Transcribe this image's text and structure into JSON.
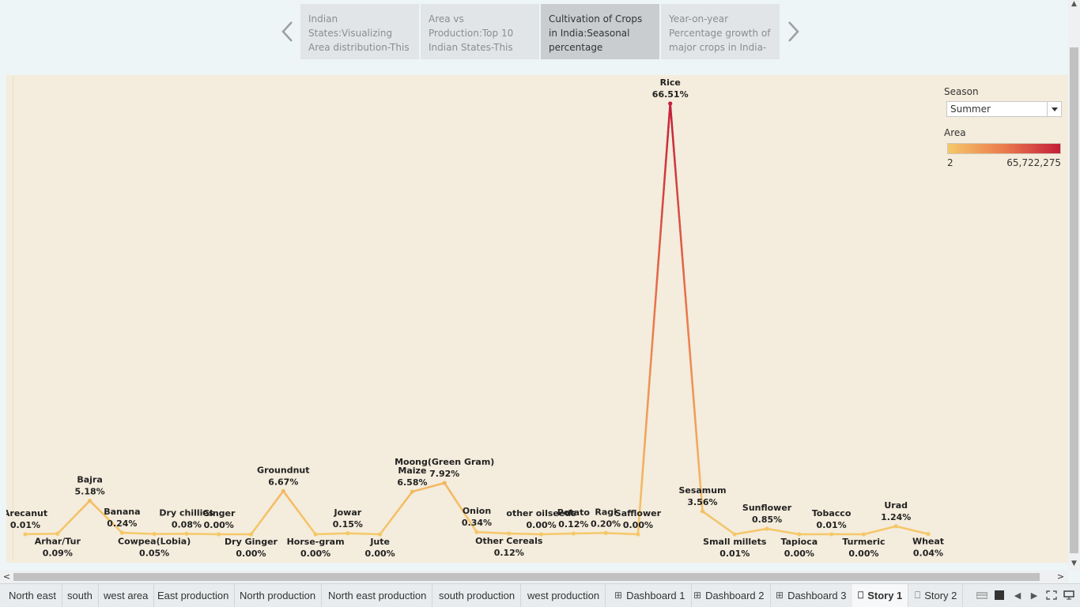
{
  "story": {
    "points": [
      "Indian States:Visualizing Area distribution-This",
      "Area vs Production:Top 10 Indian States-This",
      "Cultivation of Crops in India:Seasonal percentage",
      "Year-on-year Percentage growth of major crops in India-"
    ],
    "active_index": 2
  },
  "legend": {
    "season_title": "Season",
    "season_value": "Summer",
    "area_title": "Area",
    "area_min": "2",
    "area_max": "65,722,275",
    "colors": [
      "#f5c869",
      "#eb7a4d",
      "#c41e3a"
    ]
  },
  "chart_data": {
    "type": "line",
    "x": [
      "Arecanut",
      "Arhar/Tur",
      "Bajra",
      "Banana",
      "Cowpea(Lobia)",
      "Dry chillies",
      "Ginger",
      "Dry Ginger",
      "Groundnut",
      "Horse-gram",
      "Jowar",
      "Jute",
      "Maize",
      "Moong(Green Gram)",
      "Onion",
      "Other Cereals",
      "other oilseeds",
      "Potato",
      "Ragi",
      "Safflower",
      "Rice",
      "Sesamum",
      "Small millets",
      "Sunflower",
      "Tapioca",
      "Tobacco",
      "Turmeric",
      "Urad",
      "Wheat"
    ],
    "labels": [
      {
        "name": "Arecanut",
        "pct": "0.01%",
        "value": 0.01,
        "pos": "above"
      },
      {
        "name": "Arhar/Tur",
        "pct": "0.09%",
        "value": 0.09,
        "pos": "below"
      },
      {
        "name": "Bajra",
        "pct": "5.18%",
        "value": 5.18,
        "pos": "above"
      },
      {
        "name": "Banana",
        "pct": "0.24%",
        "value": 0.24,
        "pos": "above"
      },
      {
        "name": "Cowpea(Lobia)",
        "pct": "0.05%",
        "value": 0.05,
        "pos": "below"
      },
      {
        "name": "Dry chillies",
        "pct": "0.08%",
        "value": 0.08,
        "pos": "above"
      },
      {
        "name": "Ginger",
        "pct": "0.00%",
        "value": 0.0,
        "pos": "above"
      },
      {
        "name": "Dry Ginger",
        "pct": "0.00%",
        "value": 0.0,
        "pos": "below"
      },
      {
        "name": "Groundnut",
        "pct": "6.67%",
        "value": 6.67,
        "pos": "above"
      },
      {
        "name": "Horse-gram",
        "pct": "0.00%",
        "value": 0.0,
        "pos": "below"
      },
      {
        "name": "Jowar",
        "pct": "0.15%",
        "value": 0.15,
        "pos": "above"
      },
      {
        "name": "Jute",
        "pct": "0.00%",
        "value": 0.0,
        "pos": "below"
      },
      {
        "name": "Maize",
        "pct": "6.58%",
        "value": 6.58,
        "pos": "above"
      },
      {
        "name": "Moong(Green Gram)",
        "pct": "7.92%",
        "value": 7.92,
        "pos": "above"
      },
      {
        "name": "Onion",
        "pct": "0.34%",
        "value": 0.34,
        "pos": "above"
      },
      {
        "name": "Other Cereals",
        "pct": "0.12%",
        "value": 0.12,
        "pos": "below"
      },
      {
        "name": "other oilseeds",
        "pct": "0.00%",
        "value": 0.0,
        "pos": "above"
      },
      {
        "name": "Potato",
        "pct": "0.12%",
        "value": 0.12,
        "pos": "above"
      },
      {
        "name": "Ragi",
        "pct": "0.20%",
        "value": 0.2,
        "pos": "above"
      },
      {
        "name": "Safflower",
        "pct": "0.00%",
        "value": 0.0,
        "pos": "above"
      },
      {
        "name": "Rice",
        "pct": "66.51%",
        "value": 66.51,
        "pos": "above"
      },
      {
        "name": "Sesamum",
        "pct": "3.56%",
        "value": 3.56,
        "pos": "above"
      },
      {
        "name": "Small millets",
        "pct": "0.01%",
        "value": 0.01,
        "pos": "below"
      },
      {
        "name": "Sunflower",
        "pct": "0.85%",
        "value": 0.85,
        "pos": "above"
      },
      {
        "name": "Tapioca",
        "pct": "0.00%",
        "value": 0.0,
        "pos": "below"
      },
      {
        "name": "Tobacco",
        "pct": "0.01%",
        "value": 0.01,
        "pos": "above"
      },
      {
        "name": "Turmeric",
        "pct": "0.00%",
        "value": 0.0,
        "pos": "below"
      },
      {
        "name": "Urad",
        "pct": "1.24%",
        "value": 1.24,
        "pos": "above"
      },
      {
        "name": "Wheat",
        "pct": "0.04%",
        "value": 0.04,
        "pos": "below"
      }
    ],
    "ylim": [
      0,
      66.51
    ],
    "grid": false,
    "legend_position": "top-right"
  },
  "tabs": [
    {
      "label": "North east",
      "icon": ""
    },
    {
      "label": "south",
      "icon": ""
    },
    {
      "label": "west area",
      "icon": ""
    },
    {
      "label": "East production",
      "icon": ""
    },
    {
      "label": "North production",
      "icon": ""
    },
    {
      "label": "North east production",
      "icon": ""
    },
    {
      "label": "south production",
      "icon": ""
    },
    {
      "label": "west production",
      "icon": ""
    },
    {
      "label": "Dashboard 1",
      "icon": "dashboard-icon"
    },
    {
      "label": "Dashboard 2",
      "icon": "dashboard-icon"
    },
    {
      "label": "Dashboard 3",
      "icon": "dashboard-icon"
    },
    {
      "label": "Story 1",
      "icon": "story-icon"
    },
    {
      "label": "Story 2",
      "icon": "story-icon"
    }
  ],
  "active_tab": "Story 1"
}
